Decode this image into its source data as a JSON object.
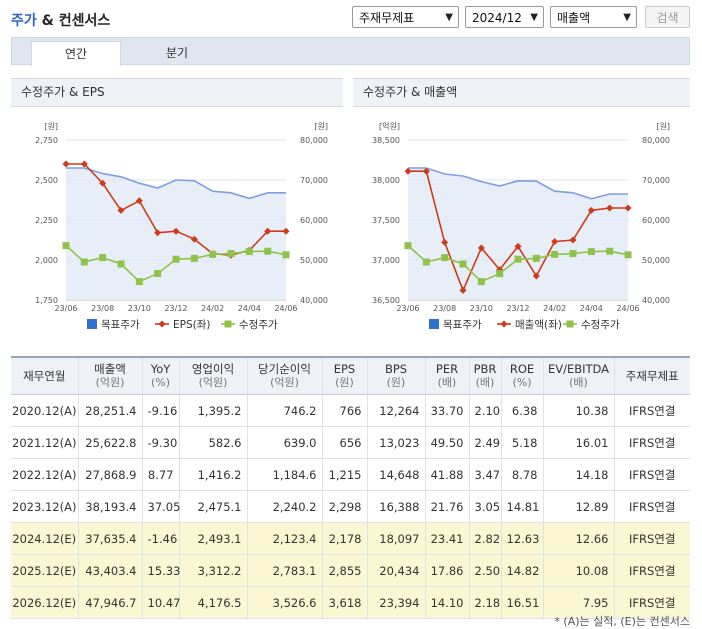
{
  "header": {
    "title_main": "주가",
    "title_rest": "& 컨센서스"
  },
  "controls": {
    "select1": "주재무제표",
    "select2": "2024/12",
    "select3": "매출액",
    "search_button": "검색"
  },
  "tabs": [
    "연간",
    "분기"
  ],
  "chart_data": [
    {
      "type": "line",
      "title": "수정주가 & EPS",
      "left_unit": "[원]",
      "right_unit": "[원]",
      "left_ylim": [
        1750,
        2750
      ],
      "left_ticks": [
        "2,750",
        "2,500",
        "2,250",
        "2,000",
        "1,750"
      ],
      "right_ylim": [
        40000,
        80000
      ],
      "right_ticks": [
        "80,000",
        "70,000",
        "60,000",
        "50,000",
        "40,000"
      ],
      "x_labels": [
        "23/06",
        "23/08",
        "23/10",
        "23/12",
        "24/02",
        "24/04",
        "24/06"
      ],
      "series": [
        {
          "name": "목표주가",
          "axis": "left",
          "color": "#7d9ee0",
          "values": [
            2575,
            2575,
            2540,
            2520,
            2480,
            2450,
            2500,
            2495,
            2430,
            2420,
            2385,
            2420,
            2420
          ]
        },
        {
          "name": "EPS(좌)",
          "axis": "left",
          "color": "#d03a17",
          "values": [
            2600,
            2600,
            2480,
            2310,
            2370,
            2170,
            2180,
            2130,
            2040,
            2030,
            2060,
            2180,
            2180
          ]
        },
        {
          "name": "수정주가",
          "axis": "right",
          "color": "#8ec24a",
          "values": [
            53600,
            49500,
            50600,
            49000,
            44600,
            46600,
            50200,
            50400,
            51400,
            51600,
            52100,
            52200,
            51300
          ]
        }
      ],
      "legend": [
        "목표주가",
        "EPS(좌)",
        "수정주가"
      ]
    },
    {
      "type": "line",
      "title": "수정주가 & 매출액",
      "left_unit": "[억원]",
      "right_unit": "[원]",
      "left_ylim": [
        36500,
        38500
      ],
      "left_ticks": [
        "38,500",
        "38,000",
        "37,500",
        "37,000",
        "36,500"
      ],
      "right_ylim": [
        40000,
        80000
      ],
      "right_ticks": [
        "80,000",
        "70,000",
        "60,000",
        "50,000",
        "40,000"
      ],
      "x_labels": [
        "23/06",
        "23/08",
        "23/10",
        "23/12",
        "24/02",
        "24/04",
        "24/06"
      ],
      "series": [
        {
          "name": "목표주가",
          "axis": "right",
          "color": "#7d9ee0",
          "values": [
            73000,
            73000,
            71500,
            71000,
            69600,
            68500,
            69800,
            69700,
            67200,
            66800,
            65300,
            66500,
            66500
          ]
        },
        {
          "name": "매출액",
          "axis": "left",
          "color": "#d03a17",
          "values": [
            38110,
            38110,
            37220,
            36620,
            37150,
            36880,
            37170,
            36800,
            37230,
            37250,
            37620,
            37650,
            37650
          ]
        },
        {
          "name": "수정주가",
          "axis": "right",
          "color": "#8ec24a",
          "values": [
            53600,
            49500,
            50600,
            49000,
            44600,
            46600,
            50200,
            50400,
            51400,
            51600,
            52100,
            52200,
            51300
          ]
        }
      ],
      "legend": [
        "목표주가",
        "매출액(좌)",
        "수정주가"
      ]
    }
  ],
  "table": {
    "headers": [
      {
        "label": "재무연월",
        "unit": ""
      },
      {
        "label": "매출액",
        "unit": "(억원)"
      },
      {
        "label": "YoY",
        "unit": "(%)"
      },
      {
        "label": "영업이익",
        "unit": "(억원)"
      },
      {
        "label": "당기순이익",
        "unit": "(억원)"
      },
      {
        "label": "EPS",
        "unit": "(원)"
      },
      {
        "label": "BPS",
        "unit": "(원)"
      },
      {
        "label": "PER",
        "unit": "(배)"
      },
      {
        "label": "PBR",
        "unit": "(배)"
      },
      {
        "label": "ROE",
        "unit": "(%)"
      },
      {
        "label": "EV/EBITDA",
        "unit": "(배)"
      },
      {
        "label": "주재무제표",
        "unit": ""
      }
    ],
    "rows": [
      {
        "estimate": false,
        "cells": [
          "2020.12(A)",
          "28,251.4",
          "-9.16",
          "1,395.2",
          "746.2",
          "766",
          "12,264",
          "33.70",
          "2.10",
          "6.38",
          "10.38",
          "IFRS연결"
        ]
      },
      {
        "estimate": false,
        "cells": [
          "2021.12(A)",
          "25,622.8",
          "-9.30",
          "582.6",
          "639.0",
          "656",
          "13,023",
          "49.50",
          "2.49",
          "5.18",
          "16.01",
          "IFRS연결"
        ]
      },
      {
        "estimate": false,
        "cells": [
          "2022.12(A)",
          "27,868.9",
          "8.77",
          "1,416.2",
          "1,184.6",
          "1,215",
          "14,648",
          "41.88",
          "3.47",
          "8.78",
          "14.18",
          "IFRS연결"
        ]
      },
      {
        "estimate": false,
        "cells": [
          "2023.12(A)",
          "38,193.4",
          "37.05",
          "2,475.1",
          "2,240.2",
          "2,298",
          "16,388",
          "21.76",
          "3.05",
          "14.81",
          "12.89",
          "IFRS연결"
        ]
      },
      {
        "estimate": true,
        "cells": [
          "2024.12(E)",
          "37,635.4",
          "-1.46",
          "2,493.1",
          "2,123.4",
          "2,178",
          "18,097",
          "23.41",
          "2.82",
          "12.63",
          "12.66",
          "IFRS연결"
        ]
      },
      {
        "estimate": true,
        "cells": [
          "2025.12(E)",
          "43,403.4",
          "15.33",
          "3,312.2",
          "2,783.1",
          "2,855",
          "20,434",
          "17.86",
          "2.50",
          "14.82",
          "10.08",
          "IFRS연결"
        ]
      },
      {
        "estimate": true,
        "cells": [
          "2026.12(E)",
          "47,946.7",
          "10.47",
          "4,176.5",
          "3,526.6",
          "3,618",
          "23,394",
          "14.10",
          "2.18",
          "16.51",
          "7.95",
          "IFRS연결"
        ]
      }
    ]
  },
  "footnote": "* (A)는 실적, (E)는 컨센서스"
}
